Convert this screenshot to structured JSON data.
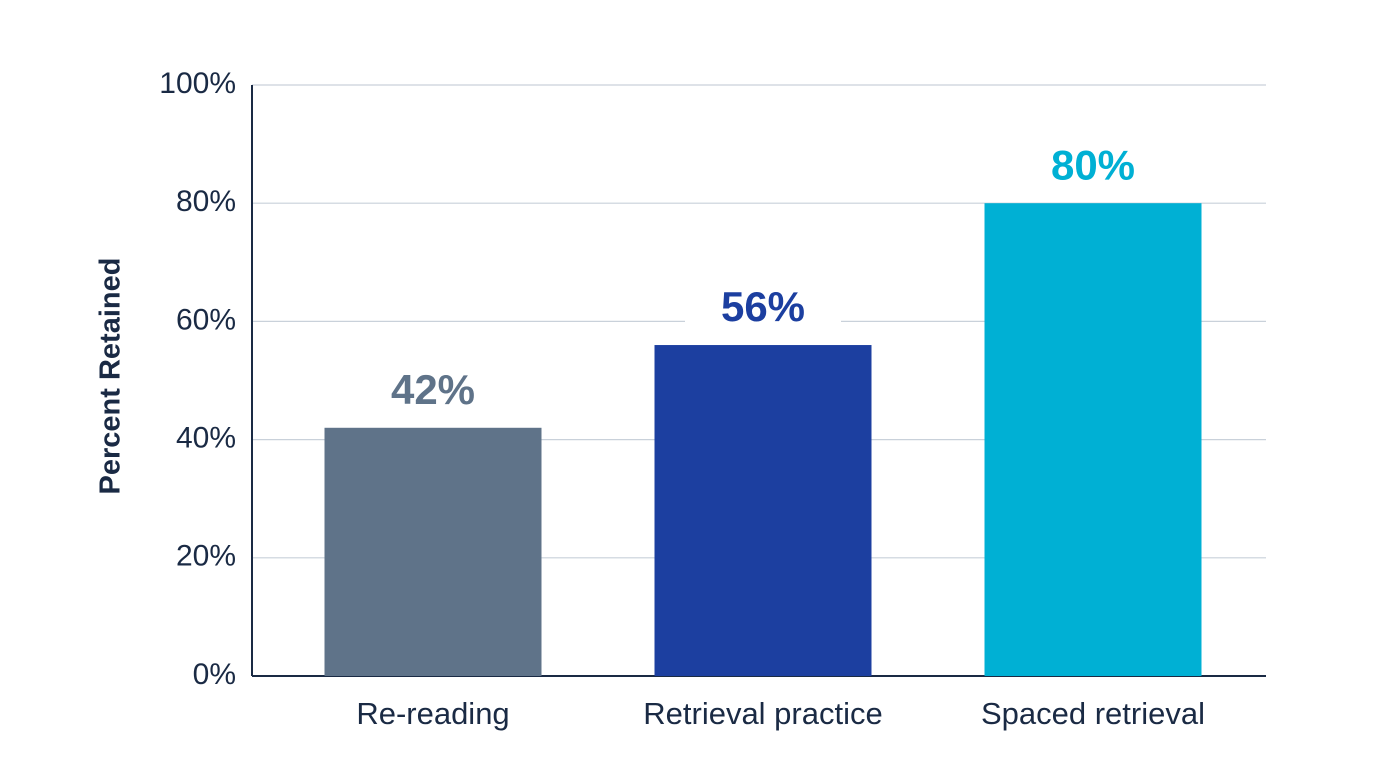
{
  "chart_data": {
    "type": "bar",
    "y_label": "Percent Retained",
    "categories": [
      "Re-reading",
      "Retrieval practice",
      "Spaced retrieval"
    ],
    "values": [
      42,
      56,
      80
    ],
    "value_labels": [
      "42%",
      "56%",
      "80%"
    ],
    "colors": [
      "#5f7389",
      "#1c3fa0",
      "#00b0d4"
    ],
    "ylim": [
      0,
      100
    ],
    "yticks": [
      {
        "value": 0,
        "label": "0%"
      },
      {
        "value": 20,
        "label": "20%"
      },
      {
        "value": 40,
        "label": "40%"
      },
      {
        "value": 60,
        "label": "60%"
      },
      {
        "value": 80,
        "label": "80%"
      },
      {
        "value": 100,
        "label": "100%"
      }
    ],
    "grid": true
  }
}
